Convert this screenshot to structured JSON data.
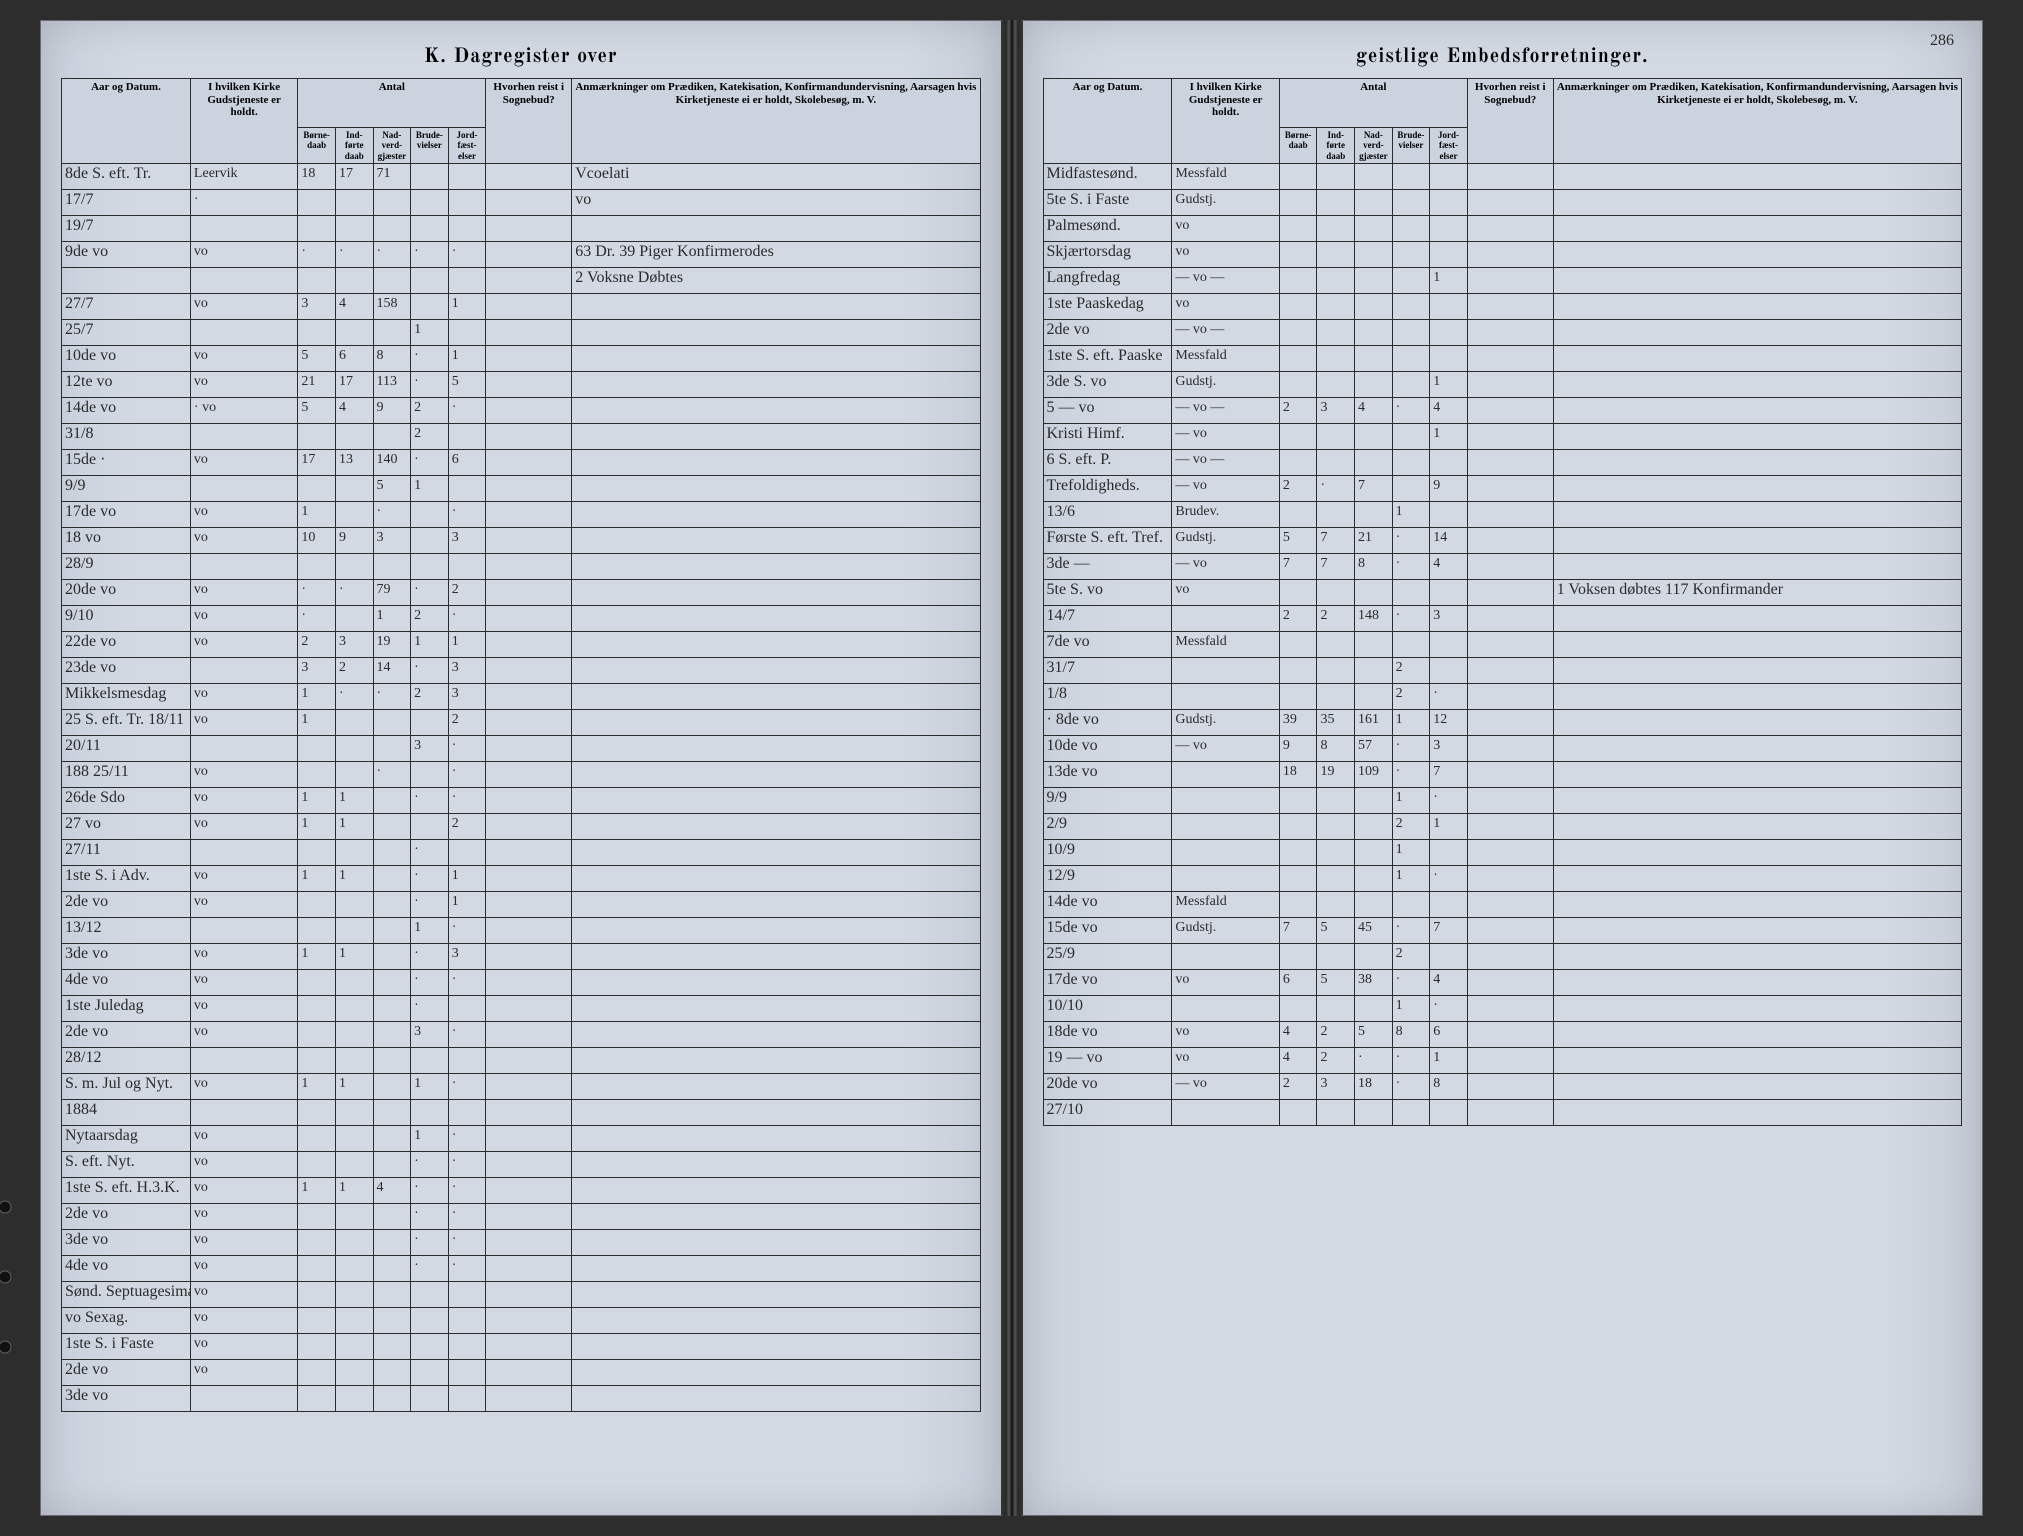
{
  "title_left": "K.  Dagregister over",
  "title_right": "geistlige Embedsforretninger.",
  "page_number_right": "286",
  "headers": {
    "date": "Aar og Datum.",
    "church": "I hvilken Kirke\nGudstjeneste\ner holdt.",
    "antal": "Antal",
    "antal_subs": [
      "Børne-\ndaab",
      "Ind-\nførte\ndaab",
      "Nad-\nverd-\ngjæster",
      "Brude-\nvielser",
      "Jord-\nfæst-\nelser"
    ],
    "sognebud": "Hvorhen reist i\nSognebud?",
    "anm": "Anmærkninger\nom Prædiken, Katekisation, Konfirmandundervisning, Aarsagen\nhvis Kirketjeneste ei er holdt, Skolebesøg, m. V."
  },
  "left_rows": [
    {
      "d": "8de S. eft. Tr.",
      "k": "Leervik",
      "a": [
        "18",
        "17",
        "71",
        "",
        ""
      ],
      "s": "",
      "m": "Vcoelati"
    },
    {
      "d": "17/7",
      "k": "·",
      "a": [
        "",
        "",
        "",
        "",
        ""
      ],
      "s": "",
      "m": "vo"
    },
    {
      "d": "19/7",
      "k": "",
      "a": [
        "",
        "",
        "",
        "",
        ""
      ],
      "s": "",
      "m": ""
    },
    {
      "d": "9de  vo",
      "k": "vo",
      "a": [
        "·",
        "·",
        "·",
        "·",
        "·"
      ],
      "s": "",
      "m": "63 Dr. 39 Piger Konfirmerodes"
    },
    {
      "d": "",
      "k": "",
      "a": [
        "",
        "",
        "",
        "",
        ""
      ],
      "s": "",
      "m": "2 Voksne Døbtes"
    },
    {
      "d": "27/7",
      "k": "vo",
      "a": [
        "3",
        "4",
        "158",
        "",
        "1"
      ],
      "s": "",
      "m": ""
    },
    {
      "d": "25/7",
      "k": "",
      "a": [
        "",
        "",
        "",
        "1",
        ""
      ],
      "s": "",
      "m": ""
    },
    {
      "d": "10de  vo",
      "k": "vo",
      "a": [
        "5",
        "6",
        "8",
        "·",
        "1"
      ],
      "s": "",
      "m": ""
    },
    {
      "d": "12te  vo",
      "k": "vo",
      "a": [
        "21",
        "17",
        "113",
        "·",
        "5"
      ],
      "s": "",
      "m": ""
    },
    {
      "d": "14de  vo",
      "k": "· vo",
      "a": [
        "5",
        "4",
        "9",
        "2",
        "·"
      ],
      "s": "",
      "m": ""
    },
    {
      "d": "31/8",
      "k": "",
      "a": [
        "",
        "",
        "",
        "2",
        ""
      ],
      "s": "",
      "m": ""
    },
    {
      "d": "15de  ·",
      "k": "vo",
      "a": [
        "17",
        "13",
        "140",
        "·",
        "6"
      ],
      "s": "",
      "m": ""
    },
    {
      "d": "9/9",
      "k": "",
      "a": [
        "",
        "",
        "5",
        "1",
        ""
      ],
      "s": "",
      "m": ""
    },
    {
      "d": "17de  vo",
      "k": "vo",
      "a": [
        "1",
        "",
        "·",
        "",
        "·"
      ],
      "s": "",
      "m": ""
    },
    {
      "d": "18  vo",
      "k": "vo",
      "a": [
        "10",
        "9",
        "3",
        "",
        "3"
      ],
      "s": "",
      "m": ""
    },
    {
      "d": "28/9",
      "k": "",
      "a": [
        "",
        "",
        "",
        "",
        ""
      ],
      "s": "",
      "m": ""
    },
    {
      "d": "20de  vo",
      "k": "vo",
      "a": [
        "·",
        "·",
        "79",
        "·",
        "2"
      ],
      "s": "",
      "m": ""
    },
    {
      "d": "9/10",
      "k": "vo",
      "a": [
        "·",
        "",
        "1",
        "2",
        "·"
      ],
      "s": "",
      "m": ""
    },
    {
      "d": "22de  vo",
      "k": "vo",
      "a": [
        "2",
        "3",
        "19",
        "1",
        "1"
      ],
      "s": "",
      "m": ""
    },
    {
      "d": "23de  vo",
      "k": "",
      "a": [
        "3",
        "2",
        "14",
        "·",
        "3"
      ],
      "s": "",
      "m": ""
    },
    {
      "d": "Mikkelsmesdag",
      "k": "vo",
      "a": [
        "1",
        "·",
        "·",
        "2",
        "3"
      ],
      "s": "",
      "m": ""
    },
    {
      "d": "25 S. eft. Tr. 18/11",
      "k": "vo",
      "a": [
        "1",
        "",
        "",
        "",
        "2"
      ],
      "s": "",
      "m": ""
    },
    {
      "d": "20/11",
      "k": "",
      "a": [
        "",
        "",
        "",
        "3",
        "·"
      ],
      "s": "",
      "m": ""
    },
    {
      "d": "188  25/11",
      "k": "vo",
      "a": [
        "",
        "",
        "·",
        "",
        "·"
      ],
      "s": "",
      "m": ""
    },
    {
      "d": "26de Sdo",
      "k": "vo",
      "a": [
        "1",
        "1",
        "",
        "·",
        "·"
      ],
      "s": "",
      "m": ""
    },
    {
      "d": "27  vo",
      "k": "vo",
      "a": [
        "1",
        "1",
        "",
        "",
        "2"
      ],
      "s": "",
      "m": ""
    },
    {
      "d": "27/11",
      "k": "",
      "a": [
        "",
        "",
        "",
        "·",
        ""
      ],
      "s": "",
      "m": ""
    },
    {
      "d": "1ste S. i Adv.",
      "k": "vo",
      "a": [
        "1",
        "1",
        "",
        "·",
        "1"
      ],
      "s": "",
      "m": ""
    },
    {
      "d": "2de  vo",
      "k": "vo",
      "a": [
        "",
        "",
        "",
        "·",
        "1"
      ],
      "s": "",
      "m": ""
    },
    {
      "d": "13/12",
      "k": "",
      "a": [
        "",
        "",
        "",
        "1",
        "·"
      ],
      "s": "",
      "m": ""
    },
    {
      "d": "3de  vo",
      "k": "vo",
      "a": [
        "1",
        "1",
        "",
        "·",
        "3"
      ],
      "s": "",
      "m": ""
    },
    {
      "d": "4de  vo",
      "k": "vo",
      "a": [
        "",
        "",
        "",
        "·",
        "·"
      ],
      "s": "",
      "m": ""
    },
    {
      "d": "1ste Juledag",
      "k": "vo",
      "a": [
        "",
        "",
        "",
        "·",
        ""
      ],
      "s": "",
      "m": ""
    },
    {
      "d": "2de  vo",
      "k": "vo",
      "a": [
        "",
        "",
        "",
        "3",
        "·"
      ],
      "s": "",
      "m": ""
    },
    {
      "d": "28/12",
      "k": "",
      "a": [
        "",
        "",
        "",
        "",
        ""
      ],
      "s": "",
      "m": ""
    },
    {
      "d": "S. m. Jul og Nyt.",
      "k": "vo",
      "a": [
        "1",
        "1",
        "",
        "1",
        "·"
      ],
      "s": "",
      "m": ""
    },
    {
      "d": "1884",
      "k": "",
      "a": [
        "",
        "",
        "",
        "",
        ""
      ],
      "s": "",
      "m": ""
    },
    {
      "d": "Nytaarsdag",
      "k": "vo",
      "a": [
        "",
        "",
        "",
        "1",
        "·"
      ],
      "s": "",
      "m": ""
    },
    {
      "d": "S. eft. Nyt.",
      "k": "vo",
      "a": [
        "",
        "",
        "",
        "·",
        "·"
      ],
      "s": "",
      "m": ""
    },
    {
      "d": "1ste S. eft. H.3.K.",
      "k": "vo",
      "a": [
        "1",
        "1",
        "4",
        "·",
        "·"
      ],
      "s": "",
      "m": ""
    },
    {
      "d": "2de  vo",
      "k": "vo",
      "a": [
        "",
        "",
        "",
        "·",
        "·"
      ],
      "s": "",
      "m": ""
    },
    {
      "d": "3de  vo",
      "k": "vo",
      "a": [
        "",
        "",
        "",
        "·",
        "·"
      ],
      "s": "",
      "m": ""
    },
    {
      "d": "4de  vo",
      "k": "vo",
      "a": [
        "",
        "",
        "",
        "·",
        "·"
      ],
      "s": "",
      "m": ""
    },
    {
      "d": "Sønd. Septuagesima",
      "k": "vo",
      "a": [
        "",
        "",
        "",
        "",
        ""
      ],
      "s": "",
      "m": ""
    },
    {
      "d": "vo   Sexag.",
      "k": "vo",
      "a": [
        "",
        "",
        "",
        "",
        ""
      ],
      "s": "",
      "m": ""
    },
    {
      "d": "1ste S.  i Faste",
      "k": "vo",
      "a": [
        "",
        "",
        "",
        "",
        ""
      ],
      "s": "",
      "m": ""
    },
    {
      "d": "2de  vo",
      "k": "vo",
      "a": [
        "",
        "",
        "",
        "",
        ""
      ],
      "s": "",
      "m": ""
    },
    {
      "d": "3de  vo",
      "k": "",
      "a": [
        "",
        "",
        "",
        "",
        ""
      ],
      "s": "",
      "m": ""
    }
  ],
  "right_rows": [
    {
      "d": "Midfastesønd.",
      "k": "Messfald",
      "a": [
        "",
        "",
        "",
        "",
        ""
      ],
      "s": "",
      "m": ""
    },
    {
      "d": "5te S. i Faste",
      "k": "Gudstj.",
      "a": [
        "",
        "",
        "",
        "",
        ""
      ],
      "s": "",
      "m": ""
    },
    {
      "d": "Palmesønd.",
      "k": "vo",
      "a": [
        "",
        "",
        "",
        "",
        ""
      ],
      "s": "",
      "m": ""
    },
    {
      "d": "Skjærtorsdag",
      "k": "vo",
      "a": [
        "",
        "",
        "",
        "",
        ""
      ],
      "s": "",
      "m": ""
    },
    {
      "d": "Langfredag",
      "k": "— vo —",
      "a": [
        "",
        "",
        "",
        "",
        "1"
      ],
      "s": "",
      "m": ""
    },
    {
      "d": "1ste Paaskedag",
      "k": "vo",
      "a": [
        "",
        "",
        "",
        "",
        ""
      ],
      "s": "",
      "m": ""
    },
    {
      "d": "2de  vo",
      "k": "— vo —",
      "a": [
        "",
        "",
        "",
        "",
        ""
      ],
      "s": "",
      "m": ""
    },
    {
      "d": "1ste S. eft. Paaske",
      "k": "Messfald",
      "a": [
        "",
        "",
        "",
        "",
        ""
      ],
      "s": "",
      "m": ""
    },
    {
      "d": "3de S.  vo",
      "k": "Gudstj.",
      "a": [
        "",
        "",
        "",
        "",
        "1"
      ],
      "s": "",
      "m": ""
    },
    {
      "d": "5    — vo",
      "k": "— vo —",
      "a": [
        "2",
        "3",
        "4",
        "·",
        "4"
      ],
      "s": "",
      "m": ""
    },
    {
      "d": "Kristi Himf.",
      "k": "— vo",
      "a": [
        "",
        "",
        "",
        "",
        "1"
      ],
      "s": "",
      "m": ""
    },
    {
      "d": "6 S. eft. P.",
      "k": "— vo —",
      "a": [
        "",
        "",
        "",
        "",
        ""
      ],
      "s": "",
      "m": ""
    },
    {
      "d": "Trefoldigheds.",
      "k": "— vo",
      "a": [
        "2",
        "·",
        "7",
        "",
        "9"
      ],
      "s": "",
      "m": ""
    },
    {
      "d": "13/6",
      "k": "Brudev.",
      "a": [
        "",
        "",
        "",
        "1",
        ""
      ],
      "s": "",
      "m": ""
    },
    {
      "d": "Første S. eft. Tref.",
      "k": "Gudstj.",
      "a": [
        "5",
        "7",
        "21",
        "·",
        "14"
      ],
      "s": "",
      "m": ""
    },
    {
      "d": "3de  —",
      "k": "— vo",
      "a": [
        "7",
        "7",
        "8",
        "·",
        "4"
      ],
      "s": "",
      "m": ""
    },
    {
      "d": "5te S.  vo",
      "k": "vo",
      "a": [
        "",
        "",
        "",
        "",
        ""
      ],
      "s": "",
      "m": "1 Voksen døbtes  117 Konfirmander"
    },
    {
      "d": "14/7",
      "k": "",
      "a": [
        "2",
        "2",
        "148",
        "·",
        "3"
      ],
      "s": "",
      "m": ""
    },
    {
      "d": "7de  vo",
      "k": "Messfald",
      "a": [
        "",
        "",
        "",
        "",
        ""
      ],
      "s": "",
      "m": ""
    },
    {
      "d": "31/7",
      "k": "",
      "a": [
        "",
        "",
        "",
        "2",
        ""
      ],
      "s": "",
      "m": ""
    },
    {
      "d": "1/8",
      "k": "",
      "a": [
        "",
        "",
        "",
        "2",
        "·"
      ],
      "s": "",
      "m": ""
    },
    {
      "d": "· 8de  vo",
      "k": "Gudstj.",
      "a": [
        "39",
        "35",
        "161",
        "1",
        "12"
      ],
      "s": "",
      "m": ""
    },
    {
      "d": "10de  vo",
      "k": "— vo",
      "a": [
        "9",
        "8",
        "57",
        "·",
        "3"
      ],
      "s": "",
      "m": ""
    },
    {
      "d": "13de  vo",
      "k": "",
      "a": [
        "18",
        "19",
        "109",
        "·",
        "7"
      ],
      "s": "",
      "m": ""
    },
    {
      "d": "9/9",
      "k": "",
      "a": [
        "",
        "",
        "",
        "1",
        "·"
      ],
      "s": "",
      "m": ""
    },
    {
      "d": "2/9",
      "k": "",
      "a": [
        "",
        "",
        "",
        "2",
        "1"
      ],
      "s": "",
      "m": ""
    },
    {
      "d": "10/9",
      "k": "",
      "a": [
        "",
        "",
        "",
        "1",
        ""
      ],
      "s": "",
      "m": ""
    },
    {
      "d": "12/9",
      "k": "",
      "a": [
        "",
        "",
        "",
        "1",
        "·"
      ],
      "s": "",
      "m": ""
    },
    {
      "d": "14de  vo",
      "k": "Messfald",
      "a": [
        "",
        "",
        "",
        "",
        ""
      ],
      "s": "",
      "m": ""
    },
    {
      "d": "15de  vo",
      "k": "Gudstj.",
      "a": [
        "7",
        "5",
        "45",
        "·",
        "7"
      ],
      "s": "",
      "m": ""
    },
    {
      "d": "25/9",
      "k": "",
      "a": [
        "",
        "",
        "",
        "2",
        ""
      ],
      "s": "",
      "m": ""
    },
    {
      "d": "17de  vo",
      "k": "vo",
      "a": [
        "6",
        "5",
        "38",
        "·",
        "4"
      ],
      "s": "",
      "m": ""
    },
    {
      "d": "10/10",
      "k": "",
      "a": [
        "",
        "",
        "",
        "1",
        "·"
      ],
      "s": "",
      "m": ""
    },
    {
      "d": "18de  vo",
      "k": "vo",
      "a": [
        "4",
        "2",
        "5",
        "8",
        "6"
      ],
      "s": "",
      "m": ""
    },
    {
      "d": "19 — vo",
      "k": "vo",
      "a": [
        "4",
        "2",
        "·",
        "·",
        "1"
      ],
      "s": "",
      "m": ""
    },
    {
      "d": "20de  vo",
      "k": "— vo",
      "a": [
        "2",
        "3",
        "18",
        "·",
        "8"
      ],
      "s": "",
      "m": ""
    },
    {
      "d": "27/10",
      "k": "",
      "a": [
        "",
        "",
        "",
        "",
        ""
      ],
      "s": "",
      "m": ""
    }
  ]
}
